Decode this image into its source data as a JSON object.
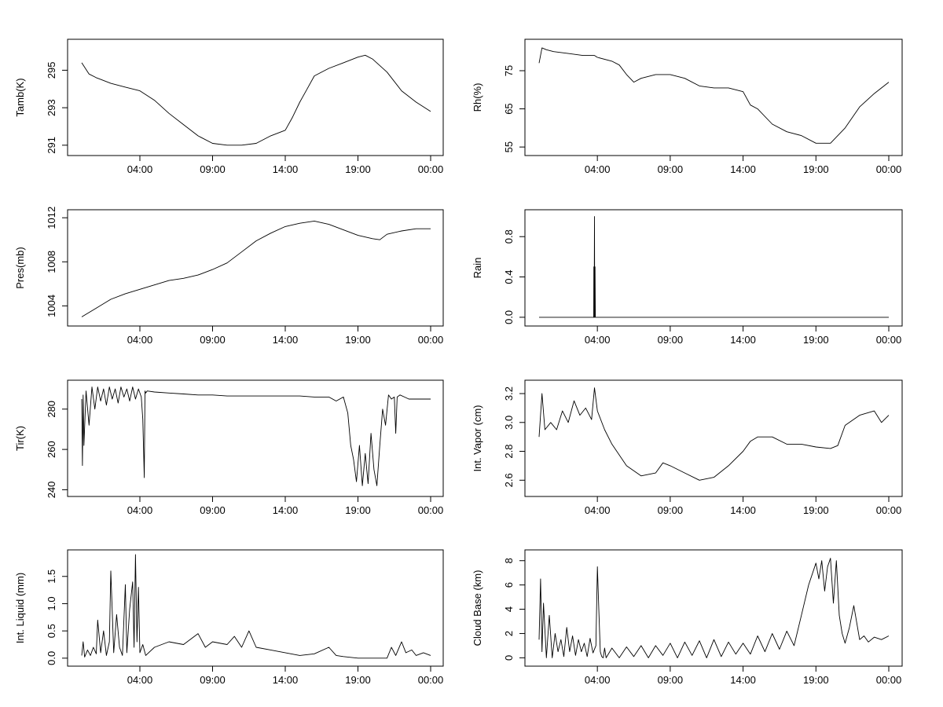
{
  "chart_data": [
    {
      "type": "line",
      "ylabel": "Tamb(K)",
      "x_ticks": [
        "04:00",
        "09:00",
        "14:00",
        "19:00",
        "00:00"
      ],
      "y_ticks": [
        291,
        293,
        295
      ],
      "xlim": [
        0,
        24
      ],
      "ylim": [
        290.7,
        296.4
      ],
      "x_hours": [
        0,
        0.5,
        1,
        2,
        3,
        4,
        5,
        6,
        7,
        8,
        9,
        10,
        11,
        12,
        13,
        14,
        14.5,
        15,
        15.5,
        16,
        17,
        18,
        19,
        19.5,
        20,
        21,
        22,
        23,
        24
      ],
      "values": [
        295.4,
        294.8,
        294.6,
        294.3,
        294.1,
        293.9,
        293.4,
        292.7,
        292.1,
        291.5,
        291.1,
        291.0,
        291.0,
        291.1,
        291.5,
        291.8,
        292.5,
        293.3,
        294.0,
        294.7,
        295.1,
        295.4,
        295.7,
        295.8,
        295.6,
        294.9,
        293.9,
        293.3,
        292.8
      ]
    },
    {
      "type": "line",
      "ylabel": "Rh(%)",
      "x_ticks": [
        "04:00",
        "09:00",
        "14:00",
        "19:00",
        "00:00"
      ],
      "y_ticks": [
        55,
        65,
        75
      ],
      "xlim": [
        0,
        24
      ],
      "ylim": [
        54,
        82
      ],
      "x_hours": [
        0,
        0.2,
        0.5,
        1,
        2,
        3,
        3.8,
        4,
        5,
        5.5,
        6,
        6.5,
        7,
        8,
        9,
        10,
        11,
        12,
        13,
        14,
        14.5,
        15,
        16,
        17,
        18,
        19,
        20,
        21,
        22,
        23,
        24
      ],
      "values": [
        77,
        81,
        80.5,
        80,
        79.5,
        79,
        79,
        78.5,
        77.5,
        76.5,
        74,
        72,
        73,
        74,
        74,
        73,
        71,
        70.5,
        70.5,
        69.5,
        66,
        65,
        61,
        59,
        58,
        56,
        56,
        60,
        65.5,
        69,
        72
      ]
    },
    {
      "type": "line",
      "ylabel": "Pres(mb)",
      "x_ticks": [
        "04:00",
        "09:00",
        "14:00",
        "19:00",
        "00:00"
      ],
      "y_ticks": [
        1004,
        1008,
        1012
      ],
      "xlim": [
        0,
        24
      ],
      "ylim": [
        1002.6,
        1012.3
      ],
      "x_hours": [
        0,
        1,
        2,
        3,
        4,
        5,
        6,
        7,
        8,
        9,
        10,
        11,
        12,
        13,
        14,
        15,
        16,
        17,
        18,
        19,
        20,
        20.5,
        21,
        22,
        23,
        24
      ],
      "values": [
        1003.0,
        1003.8,
        1004.6,
        1005.1,
        1005.5,
        1005.9,
        1006.3,
        1006.5,
        1006.8,
        1007.3,
        1007.9,
        1008.9,
        1009.9,
        1010.6,
        1011.2,
        1011.5,
        1011.7,
        1011.4,
        1010.9,
        1010.4,
        1010.1,
        1010.0,
        1010.5,
        1010.8,
        1011.0,
        1011.0
      ]
    },
    {
      "type": "line",
      "ylabel": "Rain",
      "x_ticks": [
        "04:00",
        "09:00",
        "14:00",
        "19:00",
        "00:00"
      ],
      "y_ticks": [
        0.0,
        0.4,
        0.8
      ],
      "xlim": [
        0,
        24
      ],
      "ylim": [
        -0.04,
        1.02
      ],
      "x_hours": [
        0,
        3.75,
        3.76,
        3.78,
        3.8,
        3.82,
        3.84,
        3.86,
        24
      ],
      "values": [
        0,
        0,
        0.5,
        0,
        1.0,
        0,
        0.5,
        0,
        0
      ]
    },
    {
      "type": "line",
      "ylabel": "Tir(K)",
      "x_ticks": [
        "04:00",
        "09:00",
        "14:00",
        "19:00",
        "00:00"
      ],
      "y_ticks": [
        240,
        260,
        280
      ],
      "xlim": [
        0,
        24
      ],
      "ylim": [
        239,
        292
      ],
      "x_hours": [
        0,
        0.05,
        0.1,
        0.15,
        0.3,
        0.5,
        0.7,
        0.9,
        1.1,
        1.3,
        1.5,
        1.7,
        1.9,
        2.1,
        2.3,
        2.5,
        2.7,
        2.9,
        3.1,
        3.3,
        3.5,
        3.7,
        3.9,
        4.1,
        4.2,
        4.3,
        4.35,
        4.4,
        4.5,
        5,
        6,
        7,
        8,
        9,
        10,
        11,
        12,
        13,
        14,
        15,
        16,
        17,
        17.5,
        18,
        18.3,
        18.5,
        18.7,
        18.9,
        19.1,
        19.3,
        19.5,
        19.7,
        19.9,
        20.1,
        20.3,
        20.5,
        20.7,
        20.9,
        21.1,
        21.3,
        21.5,
        21.6,
        21.7,
        21.9,
        22.2,
        22.5,
        23,
        23.5,
        24
      ],
      "values": [
        285,
        252,
        287,
        262,
        289,
        272,
        291,
        280,
        291,
        284,
        290,
        282,
        291,
        285,
        290,
        283,
        291,
        286,
        290,
        284,
        291,
        285,
        290,
        286,
        275,
        246,
        289,
        288,
        289,
        288.5,
        288,
        287.5,
        287,
        287,
        286.5,
        286.5,
        286.5,
        286.5,
        286.5,
        286.5,
        286,
        286,
        284,
        286,
        278,
        262,
        255,
        244,
        262,
        242,
        258,
        243,
        268,
        250,
        242,
        262,
        280,
        272,
        287,
        285,
        286,
        268,
        286,
        287,
        286,
        285,
        285,
        285,
        285
      ]
    },
    {
      "type": "line",
      "ylabel": "Int. Vapor (cm)",
      "x_ticks": [
        "04:00",
        "09:00",
        "14:00",
        "19:00",
        "00:00"
      ],
      "y_ticks": [
        2.6,
        2.8,
        3.0,
        3.2
      ],
      "xlim": [
        0,
        24
      ],
      "ylim": [
        2.52,
        3.26
      ],
      "x_hours": [
        0,
        0.2,
        0.4,
        0.8,
        1.2,
        1.6,
        2,
        2.4,
        2.8,
        3.2,
        3.6,
        3.8,
        4,
        4.5,
        5,
        6,
        7,
        8,
        8.5,
        9,
        10,
        11,
        12,
        13,
        14,
        14.5,
        15,
        16,
        17,
        18,
        19,
        20,
        20.5,
        21,
        22,
        23,
        23.5,
        24
      ],
      "values": [
        2.9,
        3.2,
        2.95,
        3.0,
        2.95,
        3.08,
        3.0,
        3.15,
        3.05,
        3.1,
        3.02,
        3.24,
        3.08,
        2.95,
        2.85,
        2.7,
        2.63,
        2.65,
        2.72,
        2.7,
        2.65,
        2.6,
        2.62,
        2.7,
        2.8,
        2.87,
        2.9,
        2.9,
        2.85,
        2.85,
        2.83,
        2.82,
        2.84,
        2.98,
        3.05,
        3.08,
        3.0,
        3.05
      ]
    },
    {
      "type": "line",
      "ylabel": "Int. Liquid (mm)",
      "x_ticks": [
        "04:00",
        "09:00",
        "14:00",
        "19:00",
        "00:00"
      ],
      "y_ticks": [
        0.0,
        0.5,
        1.0,
        1.5
      ],
      "xlim": [
        0,
        24
      ],
      "ylim": [
        -0.06,
        1.9
      ],
      "x_hours": [
        0,
        0.1,
        0.2,
        0.4,
        0.6,
        0.8,
        1.0,
        1.1,
        1.3,
        1.5,
        1.7,
        1.9,
        2.0,
        2.2,
        2.4,
        2.6,
        2.8,
        3.0,
        3.1,
        3.3,
        3.5,
        3.6,
        3.7,
        3.8,
        3.9,
        4.0,
        4.2,
        4.4,
        5,
        6,
        7,
        8,
        8.5,
        9,
        10,
        10.5,
        11,
        11.5,
        12,
        13,
        14,
        15,
        16,
        17,
        17.5,
        18,
        19,
        20,
        21,
        21.3,
        21.6,
        22,
        22.3,
        22.7,
        23,
        23.5,
        24
      ],
      "values": [
        0.05,
        0.3,
        0.02,
        0.15,
        0.05,
        0.2,
        0.08,
        0.7,
        0.1,
        0.5,
        0.05,
        0.3,
        1.6,
        0.1,
        0.8,
        0.2,
        0.05,
        1.35,
        0.1,
        0.9,
        1.4,
        0.2,
        1.9,
        0.3,
        1.3,
        0.1,
        0.25,
        0.05,
        0.2,
        0.3,
        0.25,
        0.45,
        0.2,
        0.3,
        0.25,
        0.4,
        0.2,
        0.5,
        0.2,
        0.15,
        0.1,
        0.05,
        0.08,
        0.2,
        0.05,
        0.03,
        0.0,
        0.0,
        0.0,
        0.2,
        0.05,
        0.3,
        0.1,
        0.15,
        0.05,
        0.1,
        0.05
      ]
    },
    {
      "type": "line",
      "ylabel": "Cloud Base (km)",
      "x_ticks": [
        "04:00",
        "09:00",
        "14:00",
        "19:00",
        "00:00"
      ],
      "y_ticks": [
        0,
        2,
        4,
        6,
        8
      ],
      "xlim": [
        0,
        24
      ],
      "ylim": [
        -0.3,
        8.5
      ],
      "x_hours": [
        0,
        0.1,
        0.2,
        0.3,
        0.5,
        0.7,
        0.9,
        1.1,
        1.3,
        1.5,
        1.7,
        1.9,
        2.1,
        2.3,
        2.5,
        2.7,
        2.9,
        3.1,
        3.3,
        3.5,
        3.7,
        3.9,
        4.0,
        4.1,
        4.2,
        4.3,
        4.4,
        4.5,
        4.6,
        5,
        5.5,
        6,
        6.5,
        7,
        7.5,
        8,
        8.5,
        9,
        9.5,
        10,
        10.5,
        11,
        11.5,
        12,
        12.5,
        13,
        13.5,
        14,
        14.5,
        15,
        15.5,
        16,
        16.5,
        17,
        17.5,
        18,
        18.5,
        19,
        19.2,
        19.4,
        19.6,
        19.8,
        20,
        20.2,
        20.4,
        20.6,
        20.8,
        21,
        21.3,
        21.6,
        22,
        22.3,
        22.6,
        23,
        23.5,
        24
      ],
      "values": [
        1.5,
        6.5,
        0.5,
        4.5,
        0,
        3.5,
        0,
        2.0,
        0.5,
        1.5,
        0.1,
        2.5,
        0.5,
        1.8,
        0.2,
        1.5,
        0.5,
        1.2,
        0.1,
        1.6,
        0.4,
        1.0,
        7.5,
        4.0,
        0.5,
        0.1,
        0,
        0.8,
        0,
        0.8,
        0,
        0.9,
        0.1,
        1.0,
        0,
        1.0,
        0.2,
        1.2,
        0,
        1.3,
        0.2,
        1.4,
        0,
        1.5,
        0.1,
        1.3,
        0.3,
        1.2,
        0.3,
        1.8,
        0.5,
        2.0,
        0.7,
        2.2,
        1.0,
        3.5,
        6.0,
        7.8,
        6.5,
        8.0,
        5.5,
        7.5,
        8.2,
        4.5,
        8.0,
        3.5,
        2.0,
        1.2,
        2.5,
        4.3,
        1.5,
        1.8,
        1.3,
        1.7,
        1.5,
        1.8
      ]
    }
  ]
}
